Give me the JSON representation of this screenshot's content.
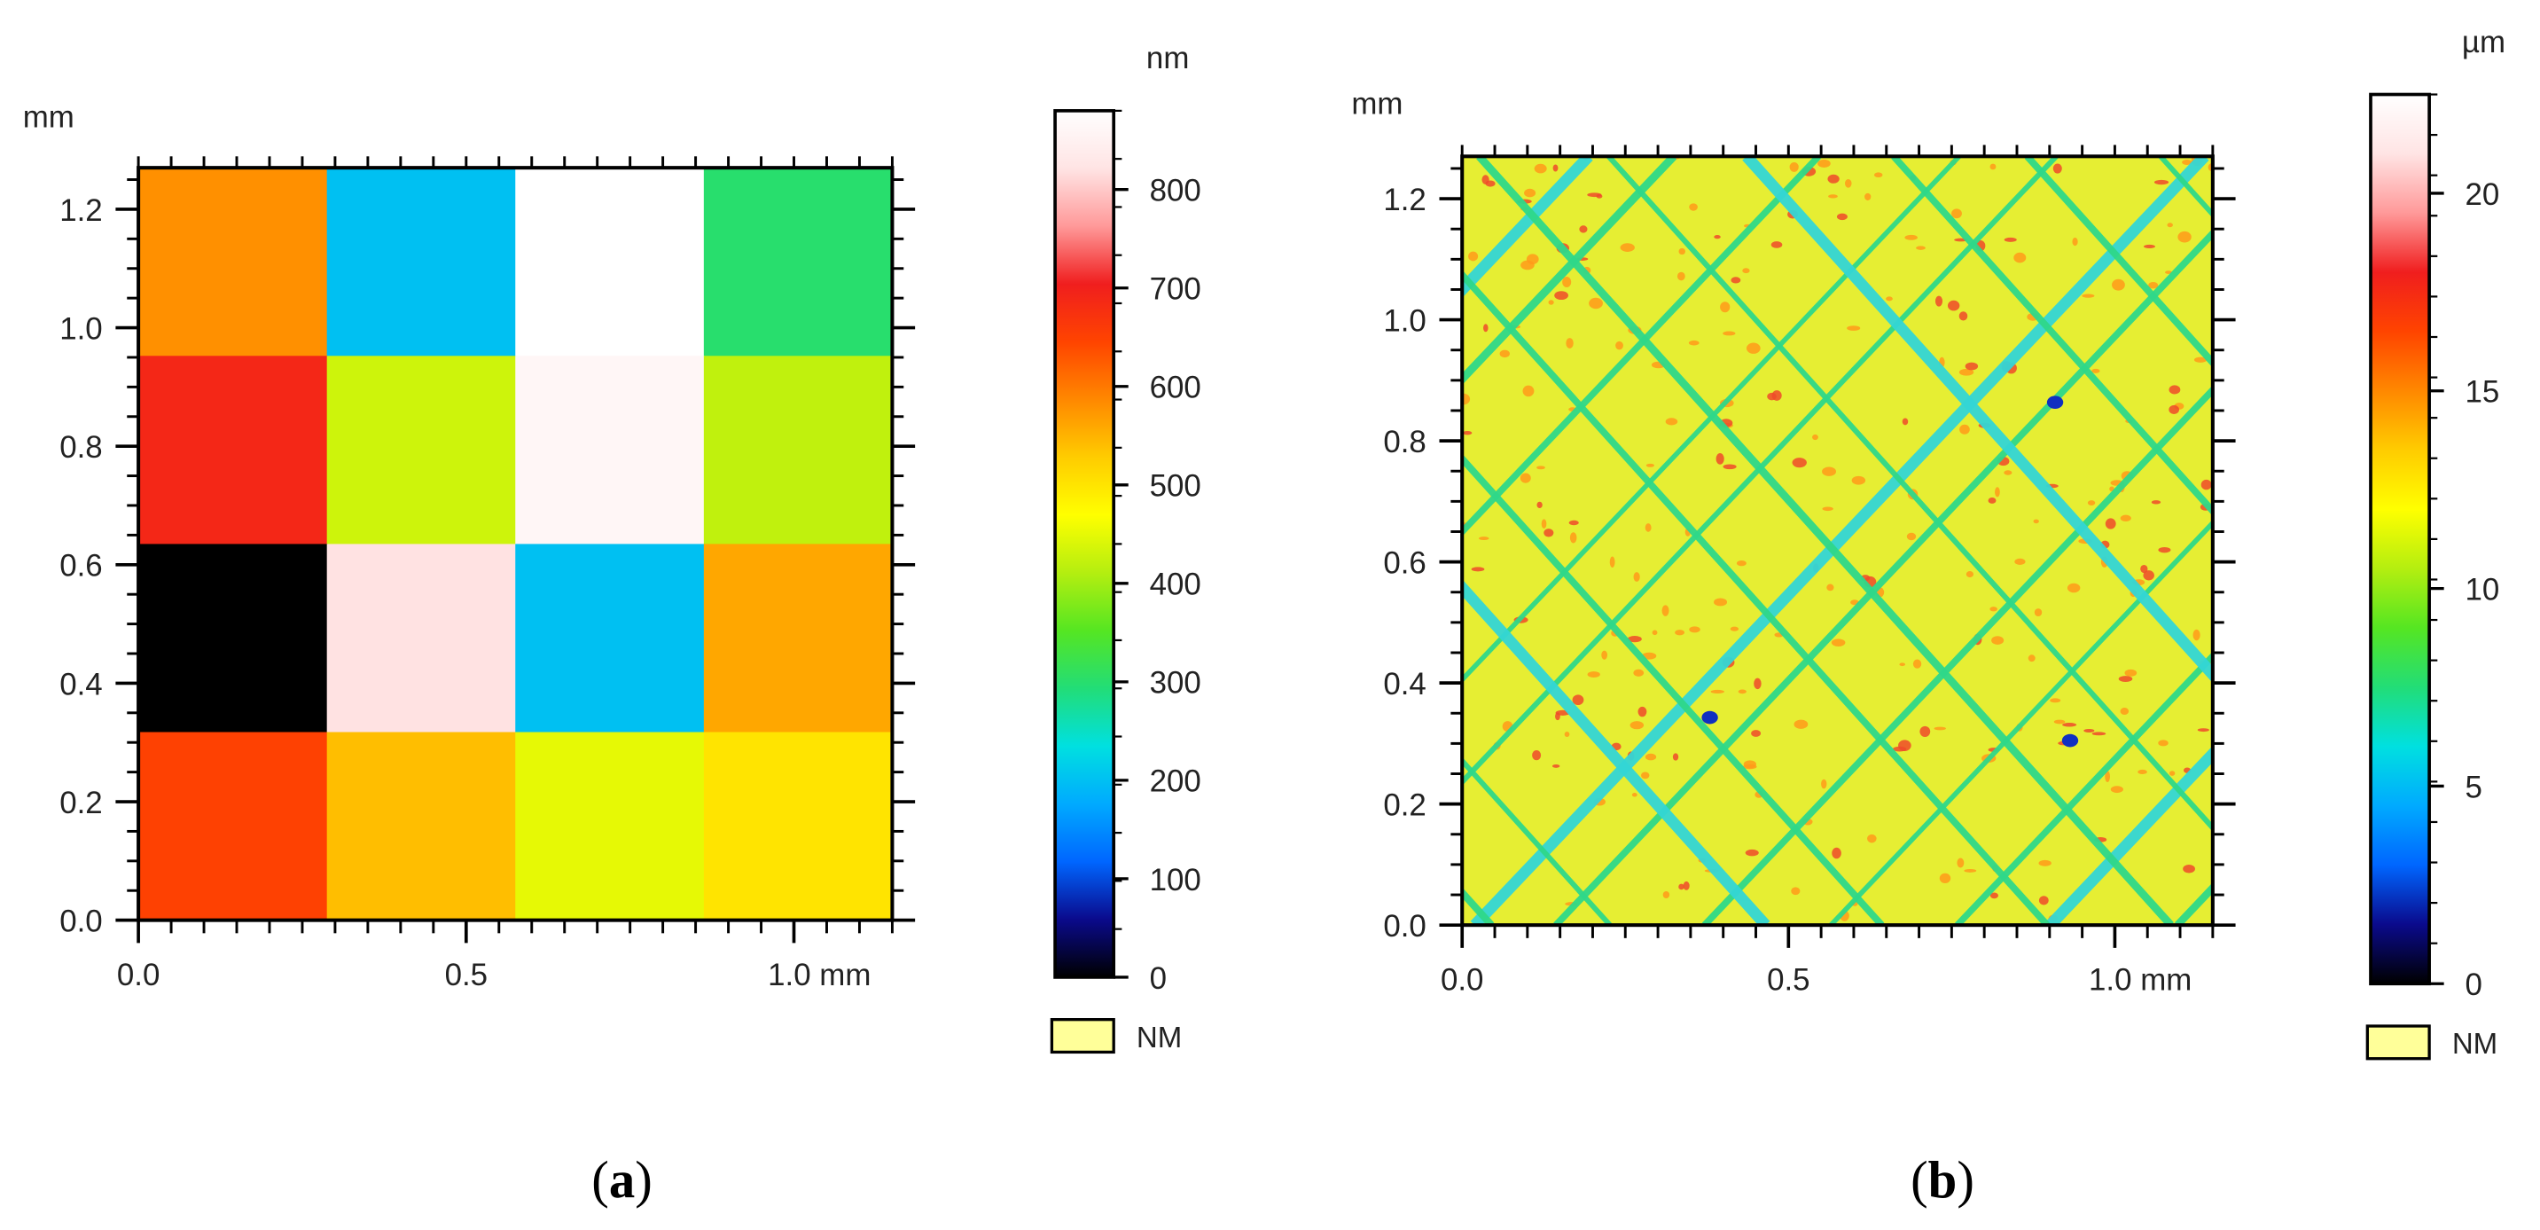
{
  "chart_data": [
    {
      "type": "heatmap",
      "panel_label": "a",
      "x_unit": "mm",
      "y_unit": "mm",
      "xlim": [
        0.0,
        1.15
      ],
      "ylim": [
        0.0,
        1.27
      ],
      "x_ticks": [
        0.0,
        0.5,
        1.0
      ],
      "x_tick_labels": [
        "0.0",
        "0.5",
        "1.0 mm"
      ],
      "y_ticks": [
        0.0,
        0.2,
        0.4,
        0.6,
        0.8,
        1.0,
        1.2
      ],
      "y_tick_labels": [
        "0.0",
        "0.2",
        "0.4",
        "0.6",
        "0.8",
        "1.0",
        "1.2"
      ],
      "colorbar": {
        "unit": "nm",
        "range": [
          0,
          880
        ],
        "ticks": [
          0,
          100,
          200,
          300,
          400,
          500,
          600,
          700,
          800
        ],
        "tick_labels": [
          "0",
          "100",
          "200",
          "300",
          "400",
          "500",
          "600",
          "700",
          "800"
        ]
      },
      "legend": {
        "label": "NM",
        "color": "#ffff99"
      },
      "grid_rows_top_to_bottom": [
        [
          580,
          200,
          880,
          300
        ],
        [
          690,
          430,
          860,
          420
        ],
        [
          0,
          820,
          200,
          560
        ],
        [
          650,
          540,
          450,
          500
        ]
      ]
    },
    {
      "type": "heatmap",
      "panel_label": "b",
      "x_unit": "mm",
      "y_unit": "mm",
      "xlim": [
        0.0,
        1.15
      ],
      "ylim": [
        0.0,
        1.27
      ],
      "x_ticks": [
        0.0,
        0.5,
        1.0
      ],
      "x_tick_labels": [
        "0.0",
        "0.5",
        "1.0 mm"
      ],
      "y_ticks": [
        0.0,
        0.2,
        0.4,
        0.6,
        0.8,
        1.0,
        1.2
      ],
      "y_tick_labels": [
        "0.0",
        "0.2",
        "0.4",
        "0.6",
        "0.8",
        "1.0",
        "1.2"
      ],
      "colorbar": {
        "unit": "µm",
        "range": [
          0,
          22.5
        ],
        "ticks": [
          0,
          5,
          10,
          15,
          20
        ],
        "tick_labels": [
          "0",
          "5",
          "10",
          "15",
          "20"
        ]
      },
      "legend": {
        "label": "NM",
        "color": "#ffff99"
      },
      "base_color": "#e6ee33",
      "scratch_color": "#2fd88a",
      "deep_scratch_color": "#33d6d6"
    }
  ],
  "colormap": [
    "#000000",
    "#0a0a8c",
    "#0066ff",
    "#00aaff",
    "#00e0e0",
    "#22dd77",
    "#55e622",
    "#b4ee10",
    "#ffff00",
    "#ffcc00",
    "#ff8800",
    "#ff4400",
    "#f01e1e",
    "#ff9999",
    "#ffe4e4",
    "#ffffff"
  ]
}
